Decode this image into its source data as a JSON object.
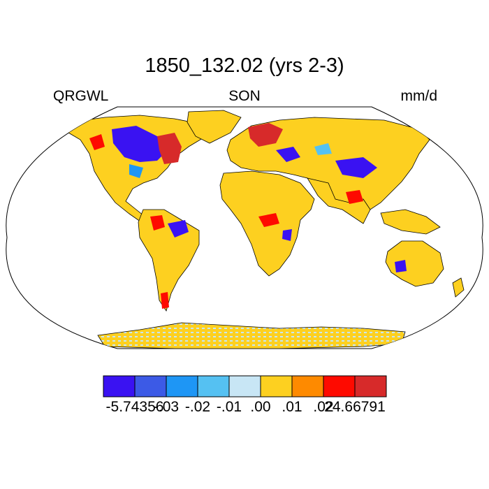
{
  "title": "1850_132.02 (yrs 2-3)",
  "left_label": "QRGWL",
  "center_label": "SON",
  "right_label": "mm/d",
  "colorbar": {
    "colors": [
      "#3a12f2",
      "#3c5ae6",
      "#1e96f5",
      "#55c1f2",
      "#c8e6f5",
      "#fdd020",
      "#fe8a00",
      "#fe0a00",
      "#d72a2a"
    ],
    "labels": [
      "-5.74356",
      "-.03",
      "-.02",
      "-.01",
      ".00",
      ".01",
      ".02",
      "24.66791"
    ]
  },
  "colors": {
    "land": "#fdd020",
    "ocean": "#ffffff",
    "outline": "#000000",
    "antarctica_pattern": "#c8e6f5"
  }
}
